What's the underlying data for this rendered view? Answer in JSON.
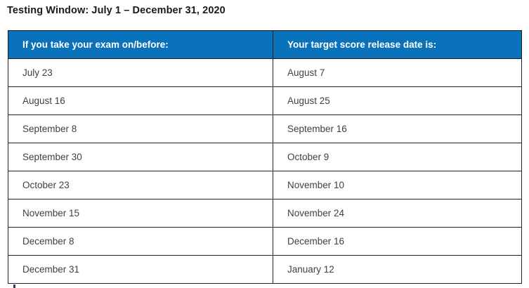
{
  "page": {
    "title": "Testing Window: July 1 – December 31, 2020"
  },
  "table": {
    "headers": {
      "exam": "If you take your exam on/before:",
      "release": "Your target score release date is:"
    },
    "rows": [
      {
        "exam": "July 23",
        "release": "August 7"
      },
      {
        "exam": "August 16",
        "release": "August 25"
      },
      {
        "exam": "September 8",
        "release": "September 16"
      },
      {
        "exam": "September 30",
        "release": "October 9"
      },
      {
        "exam": "October 23",
        "release": "November 10"
      },
      {
        "exam": "November 15",
        "release": "November 24"
      },
      {
        "exam": "December 8",
        "release": "December 16"
      },
      {
        "exam": "December 31",
        "release": "January 12"
      }
    ]
  },
  "colors": {
    "header_bg": "#0a72ba",
    "header_text": "#ffffff",
    "border": "#242424",
    "body_text": "#404040",
    "title_text": "#1a1a1a",
    "page_bg": "#ffffff"
  }
}
